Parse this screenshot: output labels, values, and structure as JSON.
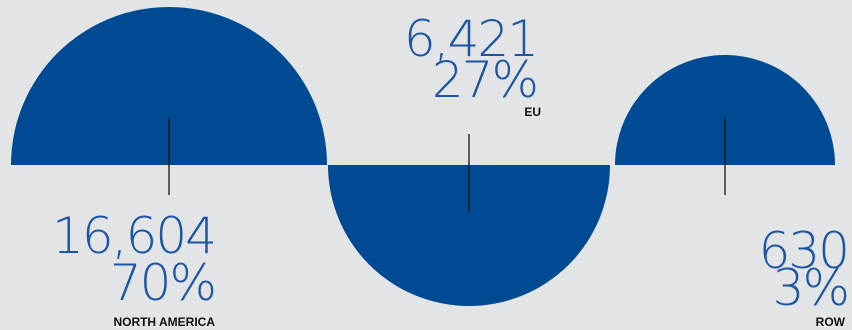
{
  "chart_data": {
    "type": "semicircle",
    "items": [
      {
        "region": "NORTH AMERICA",
        "value": "16,604",
        "percent": "70%",
        "value_num": 16604,
        "percent_num": 70,
        "orientation": "up"
      },
      {
        "region": "EU",
        "value": "6,421",
        "percent": "27%",
        "value_num": 6421,
        "percent_num": 27,
        "orientation": "down"
      },
      {
        "region": "ROW",
        "value": "630",
        "percent": "3%",
        "value_num": 630,
        "percent_num": 3,
        "orientation": "up"
      }
    ]
  },
  "colors": {
    "background": "#e3e4e5",
    "shape_fill": "#004a93",
    "number_text": "#1a55a6",
    "region_text": "#111111",
    "marker_line": "#111111"
  }
}
